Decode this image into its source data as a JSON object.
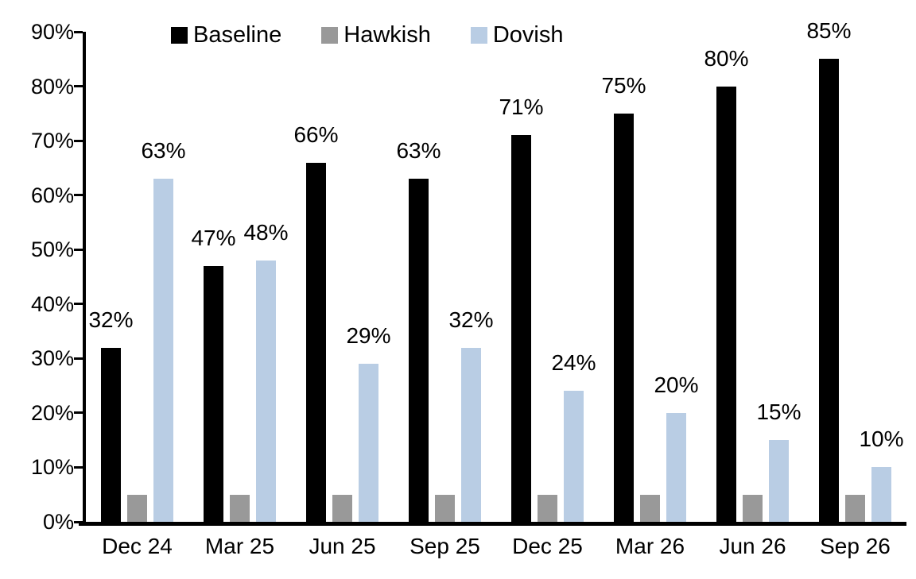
{
  "chart_data": {
    "type": "bar",
    "title": "",
    "xlabel": "",
    "ylabel": "",
    "categories": [
      "Dec 24",
      "Mar 25",
      "Jun 25",
      "Sep 25",
      "Dec 25",
      "Mar 26",
      "Jun 26",
      "Sep 26"
    ],
    "series": [
      {
        "name": "Baseline",
        "color": "#000000",
        "values": [
          32,
          47,
          66,
          63,
          71,
          75,
          80,
          85
        ],
        "labels": [
          "32%",
          "47%",
          "66%",
          "63%",
          "71%",
          "75%",
          "80%",
          "85%"
        ]
      },
      {
        "name": "Hawkish",
        "color": "#999999",
        "values": [
          5,
          5,
          5,
          5,
          5,
          5,
          5,
          5
        ],
        "labels": []
      },
      {
        "name": "Dovish",
        "color": "#b9cde4",
        "values": [
          63,
          48,
          29,
          32,
          24,
          20,
          15,
          10
        ],
        "labels": [
          "63%",
          "48%",
          "29%",
          "32%",
          "24%",
          "20%",
          "15%",
          "10%"
        ]
      }
    ],
    "ylim": [
      0,
      90
    ],
    "ytick_values": [
      90,
      80,
      70,
      60,
      50,
      40,
      30,
      20,
      10,
      0
    ],
    "yticks": [
      "90%",
      "80%",
      "70%",
      "60%",
      "50%",
      "40%",
      "30%",
      "20%",
      "10%",
      "0%"
    ],
    "grid": false,
    "legend_position": "top-inside",
    "axis_color": "#000000",
    "background_color": "#ffffff"
  }
}
